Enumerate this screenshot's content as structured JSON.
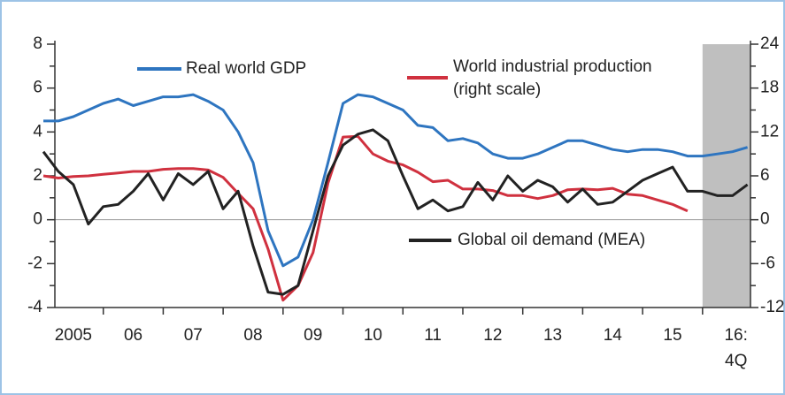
{
  "chart_data": {
    "type": "line",
    "x": [
      2005,
      2005.25,
      2005.5,
      2005.75,
      2006,
      2006.25,
      2006.5,
      2006.75,
      2007,
      2007.25,
      2007.5,
      2007.75,
      2008,
      2008.25,
      2008.5,
      2008.75,
      2009,
      2009.25,
      2009.5,
      2009.75,
      2010,
      2010.25,
      2010.5,
      2010.75,
      2011,
      2011.25,
      2011.5,
      2011.75,
      2012,
      2012.25,
      2012.5,
      2012.75,
      2013,
      2013.25,
      2013.5,
      2013.75,
      2014,
      2014.25,
      2014.5,
      2014.75,
      2015,
      2015.25,
      2015.5,
      2015.75,
      2016,
      2016.25,
      2016.5,
      2016.75
    ],
    "xlim": [
      2005,
      2016.8
    ],
    "xticks": [
      {
        "value": 2005.5,
        "label": "2005"
      },
      {
        "value": 2006.5,
        "label": "06"
      },
      {
        "value": 2007.5,
        "label": "07"
      },
      {
        "value": 2008.5,
        "label": "08"
      },
      {
        "value": 2009.5,
        "label": "09"
      },
      {
        "value": 2010.5,
        "label": "10"
      },
      {
        "value": 2011.5,
        "label": "11"
      },
      {
        "value": 2012.5,
        "label": "12"
      },
      {
        "value": 2013.5,
        "label": "13"
      },
      {
        "value": 2014.5,
        "label": "14"
      },
      {
        "value": 2015.5,
        "label": "15"
      },
      {
        "value": 2016.5,
        "label": "16:"
      }
    ],
    "xtick_marks": [
      2006,
      2007,
      2008,
      2009,
      2010,
      2011,
      2012,
      2013,
      2014,
      2015,
      2016
    ],
    "quarter_note": "4Q",
    "ylim": [
      -4,
      8
    ],
    "yticks": [
      -4,
      -2,
      0,
      2,
      4,
      6,
      8
    ],
    "yminor": [
      -3,
      -1,
      1,
      3,
      5,
      7
    ],
    "y2lim": [
      -12,
      24
    ],
    "y2ticks": [
      -12,
      -6,
      0,
      6,
      12,
      18,
      24
    ],
    "y2minor": [
      -9,
      -3,
      3,
      9,
      15,
      21
    ],
    "shaded_region": [
      2016,
      2016.8
    ],
    "series": [
      {
        "name": "Real world GDP",
        "color": "#2e75c0",
        "values": [
          4.5,
          4.5,
          4.7,
          5.0,
          5.3,
          5.5,
          5.2,
          5.4,
          5.6,
          5.6,
          5.7,
          5.4,
          5.0,
          4.0,
          2.6,
          -0.5,
          -2.1,
          -1.7,
          0.0,
          2.6,
          5.3,
          5.7,
          5.6,
          5.3,
          5.0,
          4.3,
          4.2,
          3.6,
          3.7,
          3.5,
          3.0,
          2.8,
          2.8,
          3.0,
          3.3,
          3.6,
          3.6,
          3.4,
          3.2,
          3.1,
          3.2,
          3.2,
          3.1,
          2.9,
          2.9,
          3.0,
          3.1,
          3.3
        ]
      },
      {
        "name": "World industrial production",
        "note": "(right scale)",
        "color": "#d0313f",
        "axis": "y2",
        "values": [
          6.0,
          5.7,
          5.9,
          6.0,
          6.2,
          6.4,
          6.6,
          6.6,
          6.9,
          7.0,
          7.0,
          6.8,
          5.8,
          3.6,
          1.5,
          -4.0,
          -11.0,
          -9.0,
          -4.5,
          5.0,
          11.3,
          11.4,
          9.0,
          8.0,
          7.5,
          6.5,
          5.2,
          5.4,
          4.2,
          4.2,
          4.0,
          3.3,
          3.3,
          2.9,
          3.3,
          4.1,
          4.2,
          4.1,
          4.3,
          3.5,
          3.3,
          2.7,
          2.1,
          1.2,
          null,
          null,
          null,
          null
        ]
      },
      {
        "name": "Global oil demand (MEA)",
        "color": "#222222",
        "values": [
          3.1,
          2.2,
          1.6,
          -0.2,
          0.6,
          0.7,
          1.3,
          2.1,
          0.9,
          2.1,
          1.6,
          2.2,
          0.5,
          1.3,
          -1.2,
          -3.3,
          -3.4,
          -3.0,
          -0.5,
          2.0,
          3.4,
          3.9,
          4.1,
          3.6,
          2.0,
          0.5,
          0.9,
          0.4,
          0.6,
          1.7,
          0.9,
          2.0,
          1.3,
          1.8,
          1.5,
          0.8,
          1.4,
          0.7,
          0.8,
          1.3,
          1.8,
          2.1,
          2.4,
          1.3,
          1.3,
          1.1,
          1.1,
          1.6
        ]
      }
    ]
  }
}
